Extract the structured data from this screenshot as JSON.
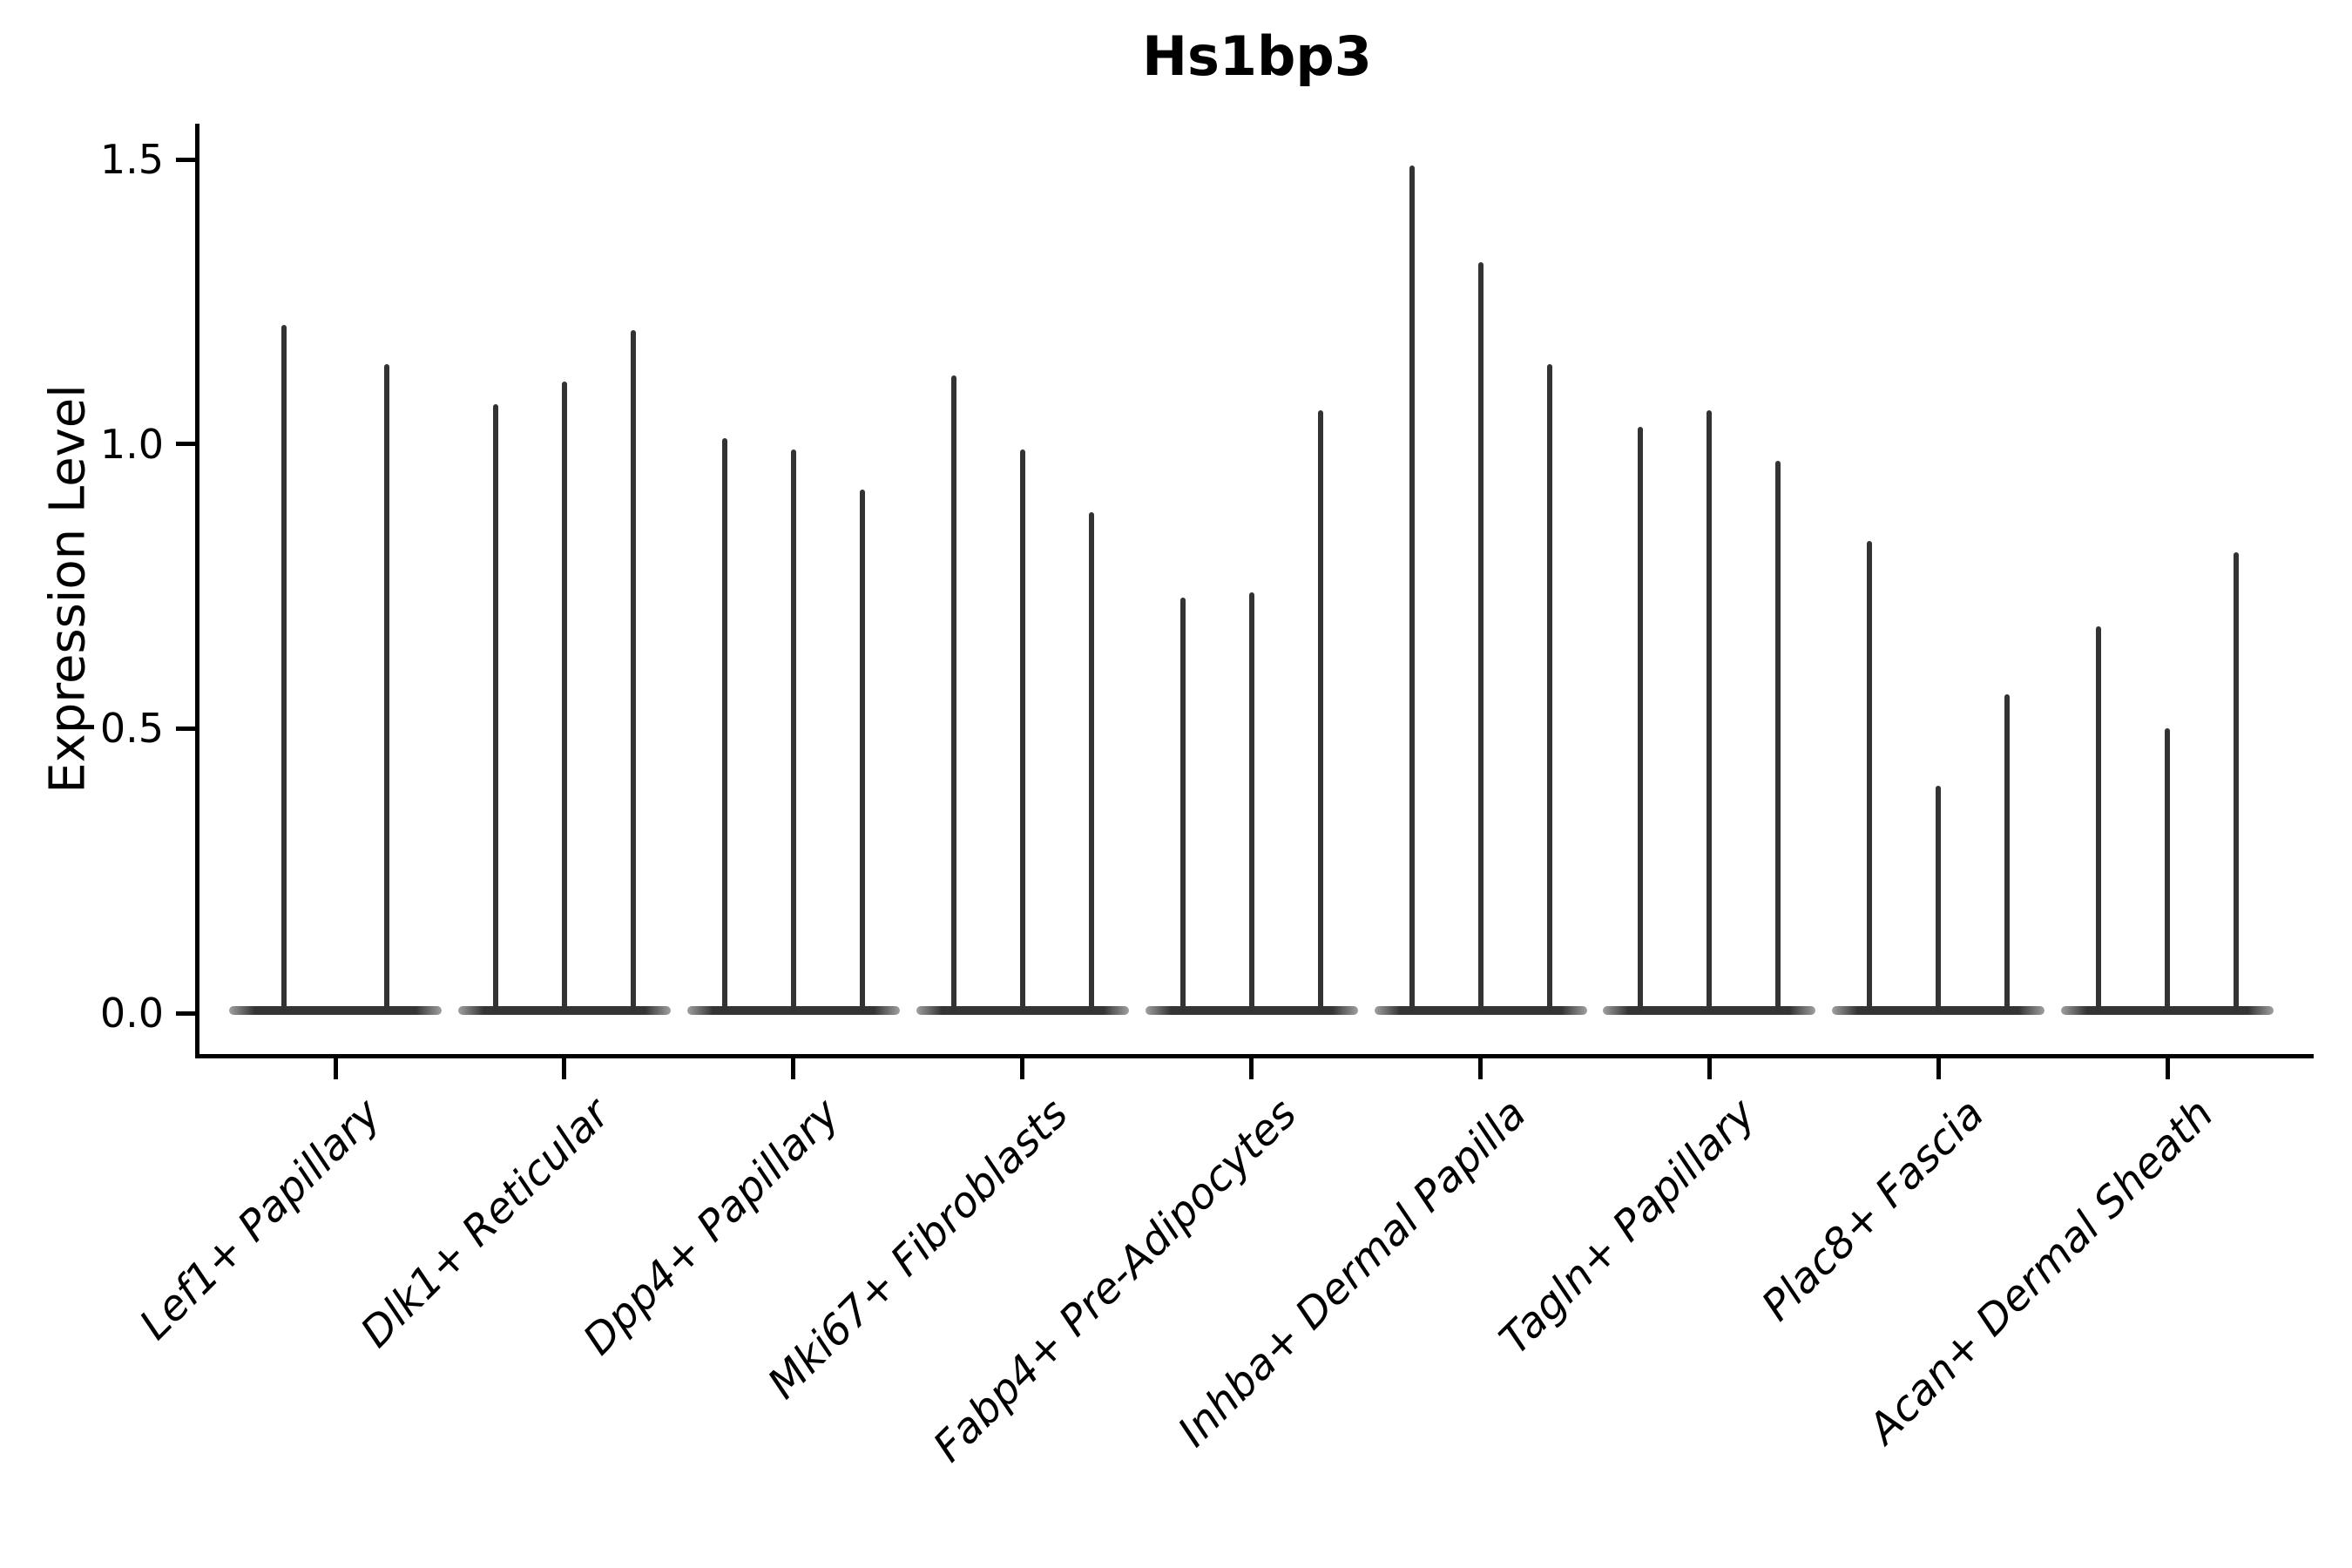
{
  "title": "Hs1bp3",
  "chart_data": {
    "type": "violin",
    "title": "Hs1bp3",
    "xlabel": "",
    "ylabel": "Expression Level",
    "ytick_labels": [
      "0.0",
      "0.5",
      "1.0",
      "1.5"
    ],
    "ytick_values": [
      0.0,
      0.5,
      1.0,
      1.5
    ],
    "ylim": [
      -0.07,
      1.56
    ],
    "grid": false,
    "legend_position": "none",
    "categories": [
      "Lef1+ Papillary",
      "Dlk1+ Reticular",
      "Dpp4+ Papillary",
      "Mki67+ Fibroblasts",
      "Fabp4+ Pre-Adipocytes",
      "Inhba+ Dermal Papilla",
      "Tagln+ Papillary",
      "Plac8+ Fascia",
      "Acan+ Dermal Sheath"
    ],
    "groups": [
      {
        "category": "Lef1+ Papillary",
        "violin_peaks": [
          1.21,
          1.14
        ]
      },
      {
        "category": "Dlk1+ Reticular",
        "violin_peaks": [
          1.07,
          1.11,
          1.2
        ]
      },
      {
        "category": "Dpp4+ Papillary",
        "violin_peaks": [
          1.01,
          0.99,
          0.92
        ]
      },
      {
        "category": "Mki67+ Fibroblasts",
        "violin_peaks": [
          1.12,
          0.99,
          0.88
        ]
      },
      {
        "category": "Fabp4+ Pre-Adipocytes",
        "violin_peaks": [
          0.73,
          0.74,
          1.06
        ]
      },
      {
        "category": "Inhba+ Dermal Papilla",
        "violin_peaks": [
          1.49,
          1.32,
          1.14
        ]
      },
      {
        "category": "Tagln+ Papillary",
        "violin_peaks": [
          1.03,
          1.06,
          0.97
        ]
      },
      {
        "category": "Plac8+ Fascia",
        "violin_peaks": [
          0.83,
          0.4,
          0.56
        ]
      },
      {
        "category": "Acan+ Dermal Sheath",
        "violin_peaks": [
          0.68,
          0.5,
          0.81
        ]
      }
    ],
    "colors": {
      "violin": "#333333",
      "axis": "#000000",
      "text": "#000000",
      "background": "#ffffff"
    }
  }
}
